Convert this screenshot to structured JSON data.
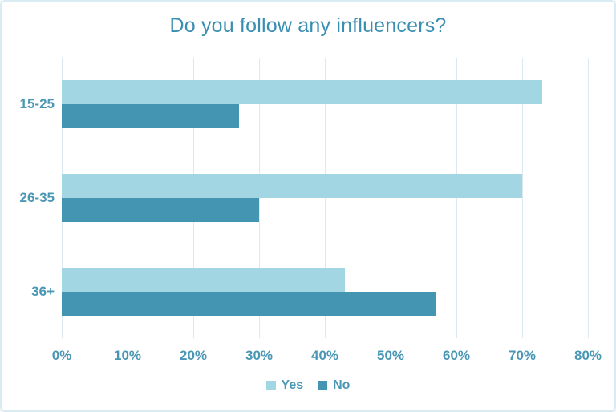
{
  "chart_data": {
    "type": "bar",
    "orientation": "horizontal",
    "title": "Do you follow any influencers?",
    "categories": [
      "15-25",
      "26-35",
      "36+"
    ],
    "series": [
      {
        "name": "Yes",
        "color": "#a2d6e2",
        "values": [
          73,
          70,
          43
        ]
      },
      {
        "name": "No",
        "color": "#4495b2",
        "values": [
          27,
          30,
          57
        ]
      }
    ],
    "value_unit": "%",
    "xlim": [
      0,
      80
    ],
    "x_tick_labels": [
      "0%",
      "10%",
      "20%",
      "30%",
      "40%",
      "50%",
      "60%",
      "70%",
      "80%"
    ],
    "grid": true,
    "legend_position": "bottom-center"
  },
  "colors": {
    "title_text": "#3a8eb2",
    "axis_text": "#4a97b5",
    "gridline": "#dde9f0",
    "background": "#ffffff",
    "page_border": "#d9ebf3"
  }
}
